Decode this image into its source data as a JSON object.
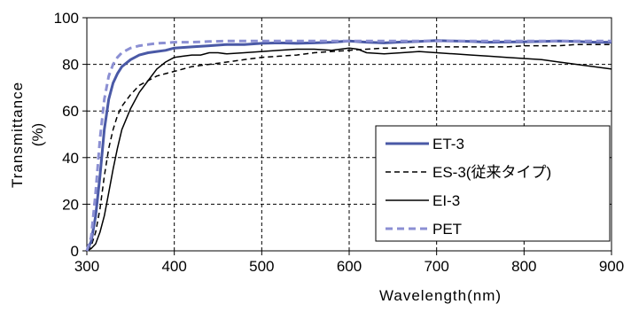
{
  "chart_data": {
    "type": "line",
    "xlabel": "Wavelength(nm)",
    "ylabel": "Transmittance\n(%)",
    "xlim": [
      300,
      900
    ],
    "ylim": [
      0,
      100
    ],
    "xticks": [
      300,
      400,
      500,
      600,
      700,
      800,
      900
    ],
    "yticks": [
      0,
      20,
      40,
      60,
      80,
      100
    ],
    "grid": true,
    "legend_position": "lower-right",
    "series": [
      {
        "name": "ET-3",
        "color": "#4a59a6",
        "style": "solid-thick",
        "x": [
          300,
          305,
          310,
          315,
          320,
          325,
          330,
          335,
          340,
          350,
          360,
          370,
          380,
          390,
          400,
          420,
          440,
          460,
          480,
          500,
          520,
          540,
          560,
          580,
          600,
          620,
          640,
          660,
          680,
          700,
          720,
          740,
          760,
          780,
          800,
          820,
          840,
          860,
          880,
          900
        ],
        "y": [
          0,
          4,
          15,
          32,
          52,
          65,
          72,
          76,
          79,
          82,
          84,
          85,
          85.5,
          86,
          87,
          87.5,
          88,
          88.5,
          88.5,
          89,
          89.2,
          89,
          89.2,
          89.5,
          90,
          89.5,
          89.2,
          89.6,
          89.8,
          90.2,
          90,
          89.8,
          89.5,
          89.6,
          89.7,
          89.8,
          90,
          89.8,
          89.5,
          89.5
        ]
      },
      {
        "name": "ES-3(従来タイプ)",
        "color": "#000000",
        "style": "dashed",
        "x": [
          300,
          305,
          310,
          315,
          320,
          325,
          330,
          335,
          340,
          350,
          360,
          370,
          380,
          390,
          400,
          420,
          440,
          460,
          480,
          500,
          520,
          540,
          560,
          580,
          600,
          620,
          640,
          660,
          680,
          700,
          720,
          740,
          760,
          780,
          800,
          820,
          840,
          860,
          880,
          900
        ],
        "y": [
          0,
          2,
          8,
          18,
          32,
          44,
          52,
          58,
          62,
          67,
          71,
          73,
          75,
          76,
          77,
          79,
          80,
          81,
          82,
          83,
          83.5,
          84,
          85,
          85.5,
          86,
          86.5,
          87,
          87,
          87.5,
          87.5,
          87.5,
          87.5,
          87.5,
          87.5,
          88,
          88,
          88,
          88.5,
          88.5,
          88.5
        ]
      },
      {
        "name": "EI-3",
        "color": "#000000",
        "style": "solid-thin",
        "x": [
          300,
          305,
          310,
          315,
          320,
          325,
          330,
          335,
          340,
          350,
          360,
          370,
          380,
          390,
          400,
          410,
          420,
          430,
          440,
          450,
          460,
          480,
          500,
          520,
          540,
          560,
          580,
          600,
          610,
          620,
          640,
          660,
          680,
          700,
          720,
          740,
          760,
          780,
          800,
          820,
          840,
          860,
          880,
          900
        ],
        "y": [
          0,
          1,
          3,
          8,
          15,
          25,
          35,
          44,
          52,
          61,
          68,
          73,
          78,
          81,
          83,
          83.5,
          84,
          84,
          85,
          85,
          84.5,
          85,
          85.5,
          86,
          86.5,
          86.5,
          86,
          87,
          86.5,
          85,
          84.5,
          85,
          85.5,
          85,
          84.5,
          84,
          83.5,
          83,
          82.5,
          82,
          81,
          80,
          79,
          78
        ]
      },
      {
        "name": "PET",
        "color": "#8b8fd3",
        "style": "dashed-thick",
        "x": [
          300,
          305,
          310,
          315,
          320,
          325,
          330,
          335,
          340,
          350,
          360,
          370,
          380,
          390,
          400,
          420,
          440,
          460,
          480,
          500,
          520,
          540,
          560,
          580,
          600,
          620,
          640,
          660,
          680,
          700,
          720,
          740,
          760,
          780,
          800,
          820,
          840,
          860,
          880,
          900
        ],
        "y": [
          0,
          6,
          25,
          48,
          65,
          75,
          80,
          83,
          85,
          87,
          88,
          88.5,
          89,
          89.2,
          89.5,
          89.5,
          89.8,
          90,
          90,
          90,
          90,
          90,
          90,
          90,
          90,
          90,
          90,
          90,
          90,
          90,
          90,
          90,
          90,
          90,
          90,
          90,
          90,
          90,
          90,
          90
        ]
      }
    ]
  }
}
